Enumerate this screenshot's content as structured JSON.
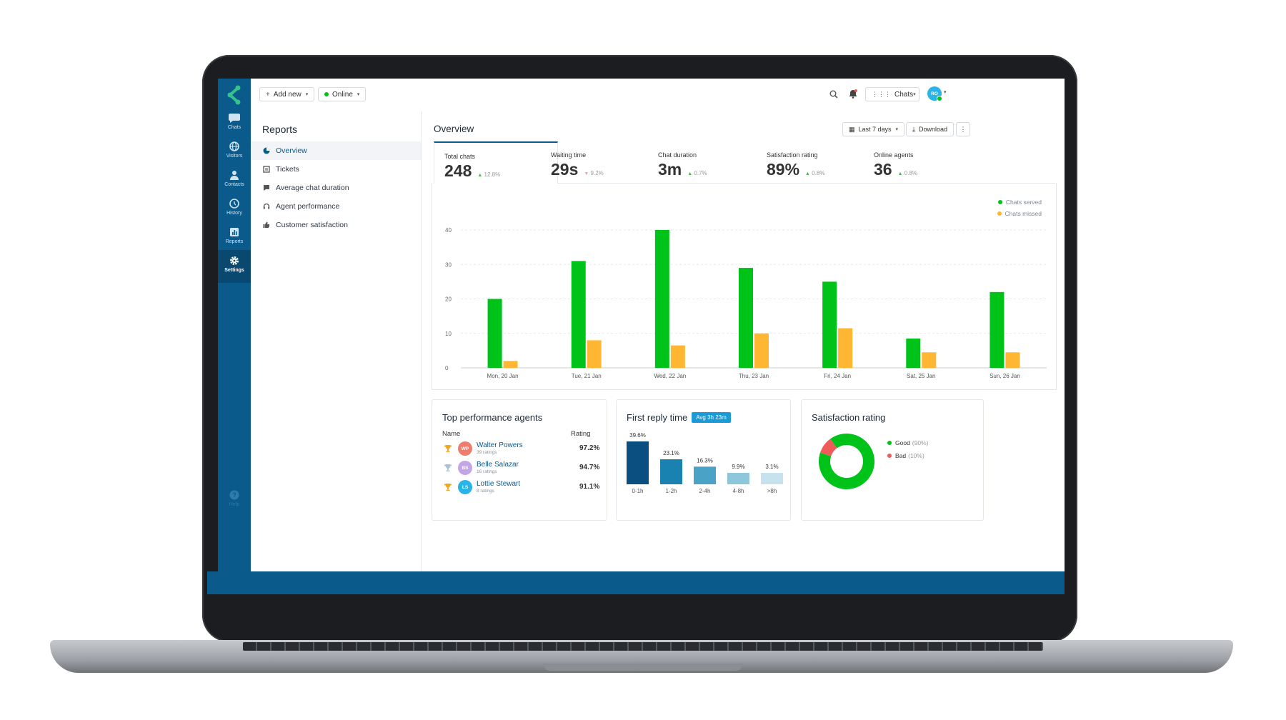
{
  "colors": {
    "brand_blue": "#0a5a8c",
    "served_green": "#00c319",
    "missed_orange": "#ffb733",
    "accent_blue": "#1a9ad6"
  },
  "app_nav": {
    "items": [
      {
        "label": "Chats",
        "icon": "chat-bubble-icon"
      },
      {
        "label": "Visitors",
        "icon": "globe-icon"
      },
      {
        "label": "Contacts",
        "icon": "person-icon"
      },
      {
        "label": "History",
        "icon": "history-icon"
      },
      {
        "label": "Reports",
        "icon": "bar-chart-icon"
      },
      {
        "label": "Settings",
        "icon": "gear-icon"
      }
    ],
    "help_label": "Help"
  },
  "topbar": {
    "add_new_label": "Add new",
    "status_label": "Online",
    "app_switch_label": "Chats",
    "avatar_initials": "RO"
  },
  "sidebar": {
    "title": "Reports",
    "items": [
      {
        "label": "Overview",
        "icon": "pie-chart-icon"
      },
      {
        "label": "Tickets",
        "icon": "tickets-icon"
      },
      {
        "label": "Average chat duration",
        "icon": "chat-duration-icon"
      },
      {
        "label": "Agent performance",
        "icon": "headset-icon"
      },
      {
        "label": "Customer satisfaction",
        "icon": "thumbs-up-icon"
      }
    ]
  },
  "overview": {
    "title": "Overview",
    "date_range_label": "Last 7 days",
    "download_label": "Download"
  },
  "kpis": [
    {
      "label": "Total chats",
      "value": "248",
      "delta": "12.8%",
      "trend": "up"
    },
    {
      "label": "Waiting time",
      "value": "29s",
      "delta": "9.2%",
      "trend": "down"
    },
    {
      "label": "Chat duration",
      "value": "3m",
      "delta": "0.7%",
      "trend": "up"
    },
    {
      "label": "Satisfaction rating",
      "value": "89%",
      "delta": "0.8%",
      "trend": "up"
    },
    {
      "label": "Online agents",
      "value": "36",
      "delta": "0.8%",
      "trend": "up"
    }
  ],
  "chart_data": [
    {
      "type": "bar",
      "categories": [
        "Mon, 20 Jan",
        "Tue, 21 Jan",
        "Wed, 22 Jan",
        "Thu, 23 Jan",
        "Fri, 24 Jan",
        "Sat, 25 Jan",
        "Sun, 26 Jan"
      ],
      "series": [
        {
          "name": "Chats served",
          "color": "#00c319",
          "values": [
            20,
            31,
            40,
            29,
            25,
            8.5,
            22
          ]
        },
        {
          "name": "Chats missed",
          "color": "#ffb733",
          "values": [
            2,
            8,
            6.5,
            10,
            11.5,
            4.5,
            4.5
          ]
        }
      ],
      "yticks": [
        "0",
        "10",
        "20",
        "30",
        "40"
      ],
      "ylim": [
        0,
        40
      ],
      "grid": true,
      "legend": "top-right"
    },
    {
      "type": "bar",
      "title": "First reply time",
      "badge": "Avg 3h 23m",
      "categories": [
        "0-1h",
        "1-2h",
        "2-4h",
        "4-8h",
        ">8h"
      ],
      "values": [
        39.6,
        23.1,
        16.3,
        9.9,
        3.1
      ],
      "labels": [
        "39.6%",
        "23.1%",
        "16.3%",
        "9.9%",
        "3.1%"
      ],
      "colors": [
        "#0b4f80",
        "#1a82b0",
        "#4aa3c7",
        "#8ec6dc",
        "#c6e2ec"
      ]
    },
    {
      "type": "pie",
      "title": "Satisfaction rating",
      "slices": [
        {
          "name": "Good",
          "pct_label": "(90%)",
          "value": 90,
          "color": "#00c319"
        },
        {
          "name": "Bad",
          "pct_label": "(10%)",
          "value": 10,
          "color": "#ef5b5b"
        }
      ]
    }
  ],
  "top_agents": {
    "title": "Top performance agents",
    "col_name": "Name",
    "col_rating": "Rating",
    "rows": [
      {
        "initials": "WP",
        "name": "Walter Powers",
        "sub": "39 ratings",
        "rating": "97.2%",
        "avatar_color": "#ef7d6d",
        "trophy_color": "#f4a623"
      },
      {
        "initials": "BS",
        "name": "Belle Salazar",
        "sub": "16 ratings",
        "rating": "94.7%",
        "avatar_color": "#c2a6e8",
        "trophy_color": "#a9c2d8"
      },
      {
        "initials": "LS",
        "name": "Lottie Stewart",
        "sub": "8 ratings",
        "rating": "91.1%",
        "avatar_color": "#2ab3e6",
        "trophy_color": "#f4a623"
      }
    ]
  }
}
